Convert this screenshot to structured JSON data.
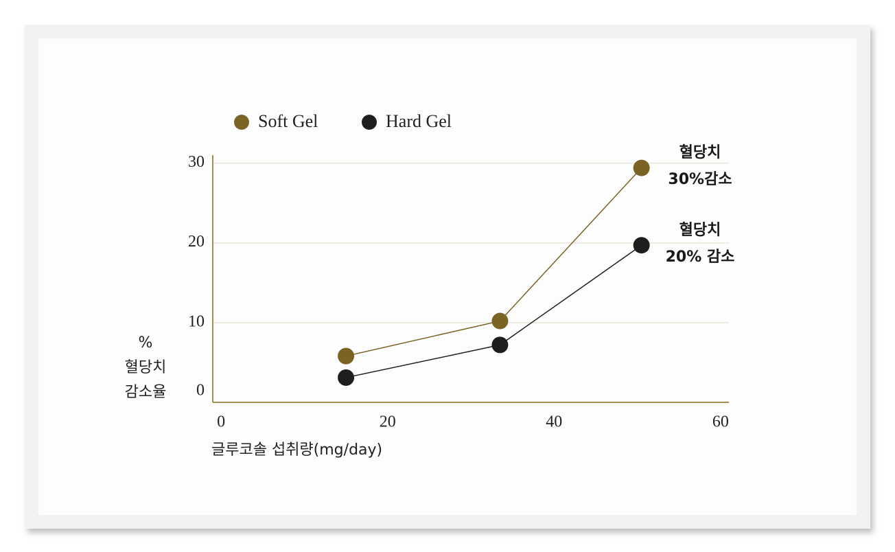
{
  "chart_data": {
    "type": "line",
    "x_label": "글루코솔 섭취량(mg/day)",
    "y_label_lines": [
      "%",
      "혈당치",
      "감소율"
    ],
    "series": [
      {
        "name": "Soft Gel",
        "color": "#7a6424",
        "x": [
          15,
          33.5,
          50.5
        ],
        "values": [
          5.8,
          10.2,
          29.4
        ]
      },
      {
        "name": "Hard Gel",
        "color": "#1e1e1c",
        "x": [
          15,
          33.5,
          50.5
        ],
        "values": [
          3.1,
          7.2,
          19.7
        ]
      }
    ],
    "annotations": [
      {
        "lines": [
          "혈당치",
          "30%감소"
        ]
      },
      {
        "lines": [
          "혈당치",
          "20% 감소"
        ]
      }
    ],
    "xlim": [
      -1,
      61
    ],
    "xticks": [
      0,
      20,
      40,
      60
    ],
    "ylim": [
      0,
      31
    ],
    "yticks": [
      0,
      10,
      20,
      30
    ],
    "grid": true
  }
}
